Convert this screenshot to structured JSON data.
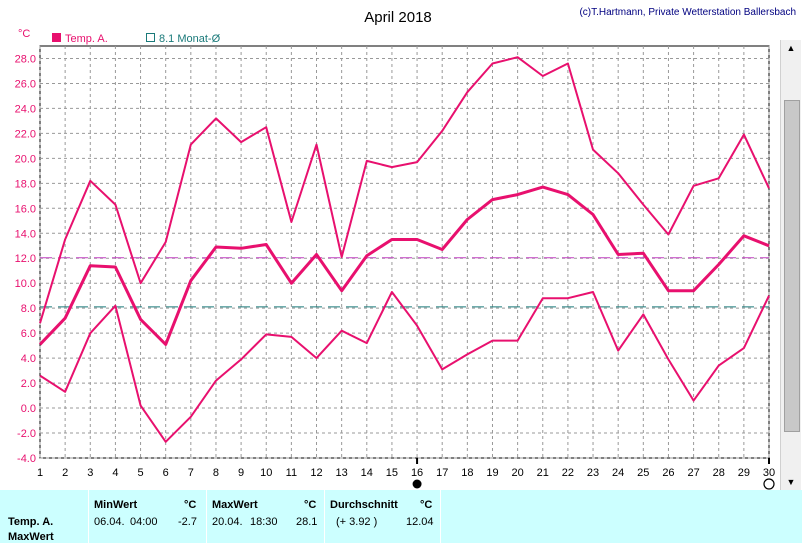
{
  "title": "April 2018",
  "copyright": "(c)T.Hartmann, Private Wetterstation Ballersbach",
  "y_unit": "°C",
  "legend": [
    {
      "label": "Temp. A.",
      "color": "#e8106e",
      "swatch": "filled"
    },
    {
      "label": "8.1 Monat-Ø",
      "color": "#1a7a7a",
      "swatch": "outline"
    }
  ],
  "chart_data": {
    "type": "line",
    "title": "April 2018",
    "ylabel": "°C",
    "xlabel": "",
    "ylim": [
      -4,
      29
    ],
    "yticks": [
      -4.0,
      -2.0,
      0.0,
      2.0,
      4.0,
      6.0,
      8.0,
      10.0,
      12.0,
      14.0,
      16.0,
      18.0,
      20.0,
      22.0,
      24.0,
      26.0,
      28.0
    ],
    "x": [
      1,
      2,
      3,
      4,
      5,
      6,
      7,
      8,
      9,
      10,
      11,
      12,
      13,
      14,
      15,
      16,
      17,
      18,
      19,
      20,
      21,
      22,
      23,
      24,
      25,
      26,
      27,
      28,
      29,
      30
    ],
    "grid": true,
    "series": [
      {
        "role": "max",
        "color": "#e8106e",
        "values": [
          6.8,
          13.5,
          18.2,
          16.3,
          10.0,
          13.3,
          21.1,
          23.2,
          21.3,
          22.5,
          14.9,
          21.1,
          12.1,
          19.8,
          19.3,
          19.7,
          22.2,
          25.3,
          27.6,
          28.1,
          26.6,
          27.6,
          20.7,
          18.8,
          16.3,
          13.9,
          17.8,
          18.4,
          21.9,
          17.6
        ]
      },
      {
        "role": "mean",
        "color": "#e8106e",
        "values": [
          5.1,
          7.2,
          11.4,
          11.3,
          7.1,
          5.1,
          10.2,
          12.9,
          12.8,
          13.1,
          10.0,
          12.3,
          9.4,
          12.2,
          13.5,
          13.5,
          12.7,
          15.1,
          16.7,
          17.1,
          17.7,
          17.1,
          15.5,
          12.3,
          12.4,
          9.4,
          9.4,
          11.5,
          13.8,
          13.0
        ]
      },
      {
        "role": "min",
        "color": "#e8106e",
        "values": [
          2.6,
          1.3,
          6.0,
          8.2,
          0.2,
          -2.7,
          -0.7,
          2.2,
          3.9,
          5.9,
          5.7,
          4.0,
          6.2,
          5.2,
          9.3,
          6.6,
          3.1,
          4.3,
          5.4,
          5.4,
          8.8,
          8.8,
          9.3,
          4.6,
          7.5,
          3.9,
          0.6,
          3.4,
          4.8,
          9.0
        ]
      }
    ],
    "reference_lines": [
      {
        "value": 12.04,
        "color": "#c040c0"
      },
      {
        "value": 8.1,
        "color": "#1a7a7a"
      }
    ],
    "markers": [
      {
        "x": 16,
        "symbol": "filled-circle"
      },
      {
        "x": 30,
        "symbol": "open-circle"
      }
    ]
  },
  "stats": {
    "row_label": "Temp. A.",
    "row_label2": "MaxWert",
    "min": {
      "header": "MinWert",
      "unit": "°C",
      "date": "06.04.",
      "time": "04:00",
      "value": "-2.7"
    },
    "max": {
      "header": "MaxWert",
      "unit": "°C",
      "date": "20.04.",
      "time": "18:30",
      "value": "28.1"
    },
    "avg": {
      "header": "Durchschnitt",
      "unit": "°C",
      "delta": "(+ 3.92 )",
      "value": "12.04"
    }
  }
}
